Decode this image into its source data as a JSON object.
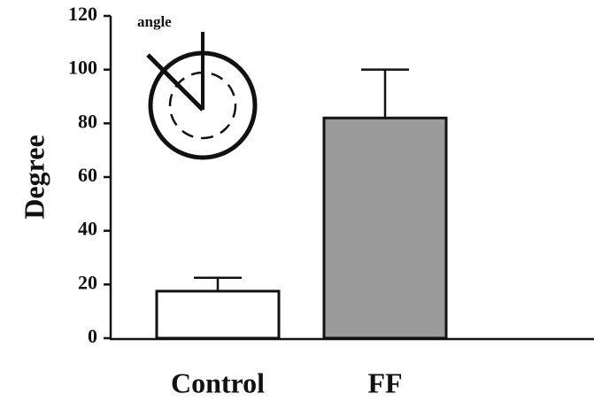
{
  "chart_data": {
    "type": "bar",
    "y_label": "Degree",
    "annotation": "angle",
    "categories": [
      "Control",
      "FF"
    ],
    "values": [
      17.5,
      82
    ],
    "errors": [
      5,
      18
    ],
    "colors": [
      "#ffffff",
      "#9a9a9a"
    ],
    "ylim": [
      0,
      120
    ],
    "yticks": [
      0,
      20,
      40,
      60,
      80,
      100,
      120
    ],
    "grid": false
  }
}
